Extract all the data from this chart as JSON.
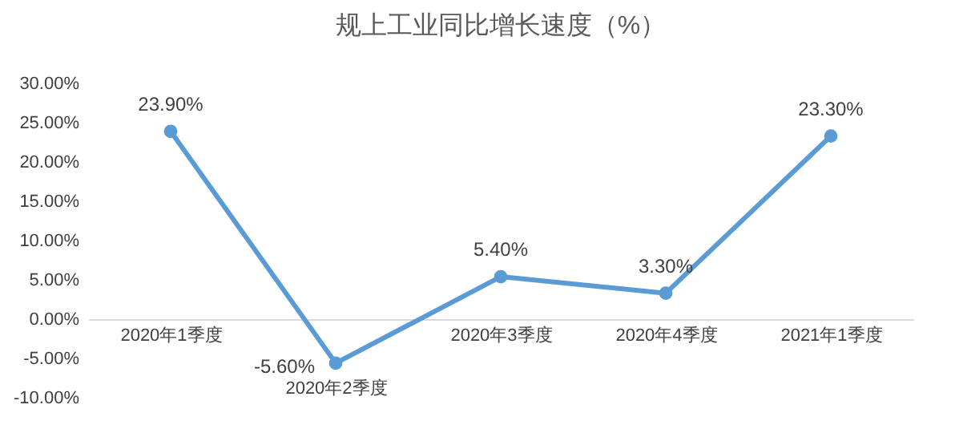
{
  "chart_data": {
    "type": "line",
    "title": "规上工业同比增长速度（%）",
    "categories": [
      "2020年1季度",
      "2020年2季度",
      "2020年3季度",
      "2020年4季度",
      "2021年1季度"
    ],
    "series": [
      {
        "color": "#5b9bd5",
        "values": [
          23.9,
          -5.6,
          5.4,
          3.3,
          23.3
        ],
        "value_labels": [
          "23.90%",
          "-5.60%",
          "5.40%",
          "3.30%",
          "23.30%"
        ]
      }
    ],
    "ylim": [
      -10,
      30
    ],
    "yticks": [
      {
        "value": -10,
        "label": "-10.00%"
      },
      {
        "value": -5,
        "label": "-5.00%"
      },
      {
        "value": 0,
        "label": "0.00%"
      },
      {
        "value": 5,
        "label": "5.00%"
      },
      {
        "value": 10,
        "label": "10.00%"
      },
      {
        "value": 15,
        "label": "15.00%"
      },
      {
        "value": 20,
        "label": "20.00%"
      },
      {
        "value": 25,
        "label": "25.00%"
      },
      {
        "value": 30,
        "label": "30.00%"
      }
    ],
    "marker": "circle",
    "line_style": "solid",
    "grid": false,
    "legend": false
  }
}
